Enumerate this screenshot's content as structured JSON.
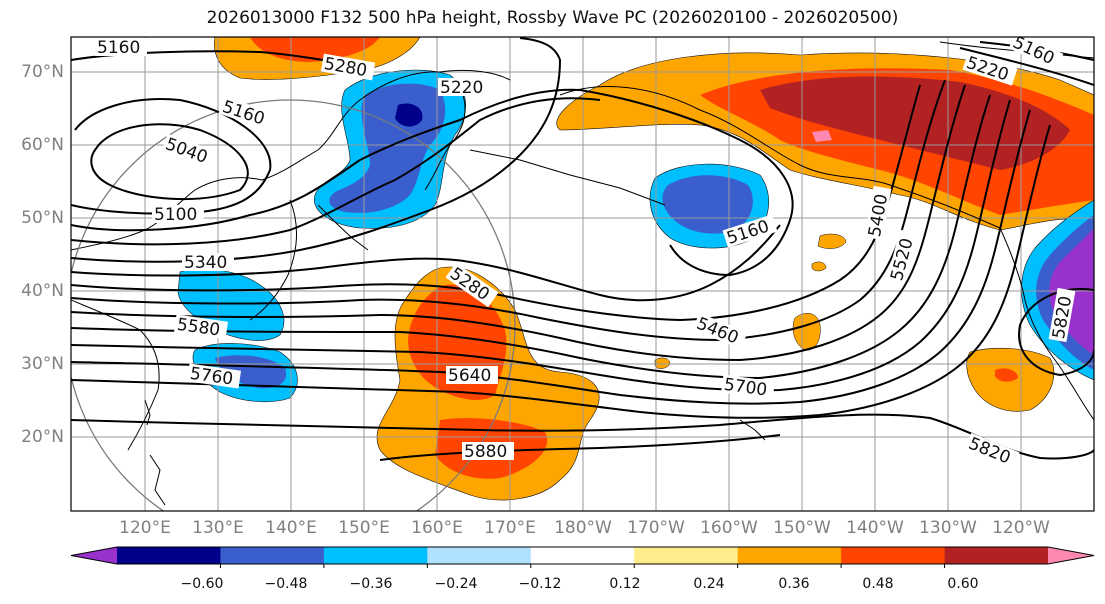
{
  "title": "2026013000 F132 500 hPa height, Rossby Wave PC (2026020100 - 2026020500)",
  "lat_labels": [
    "70°N",
    "60°N",
    "50°N",
    "40°N",
    "30°N",
    "20°N"
  ],
  "lon_labels": [
    "120°E",
    "130°E",
    "140°E",
    "150°E",
    "160°E",
    "170°E",
    "180°W",
    "170°W",
    "160°W",
    "150°W",
    "140°W",
    "130°W",
    "120°W"
  ],
  "contour_labels": [
    "5160",
    "5280",
    "5220",
    "5160",
    "5040",
    "5100",
    "5340",
    "5580",
    "5760",
    "5280",
    "5640",
    "5880",
    "5160",
    "5460",
    "5700",
    "5400",
    "5520",
    "5820",
    "5220",
    "5160",
    "5820"
  ],
  "colorbar": {
    "ticks": [
      "−0.60",
      "−0.48",
      "−0.36",
      "−0.24",
      "−0.12",
      "0.12",
      "0.24",
      "0.36",
      "0.48",
      "0.60"
    ],
    "colors": [
      "#9932cc",
      "#00008b",
      "#3a5fcd",
      "#00bfff",
      "#b0e2ff",
      "#ffffff",
      "#ffec8b",
      "#ffa500",
      "#ff4500",
      "#b22222",
      "#ff88b0"
    ]
  }
}
